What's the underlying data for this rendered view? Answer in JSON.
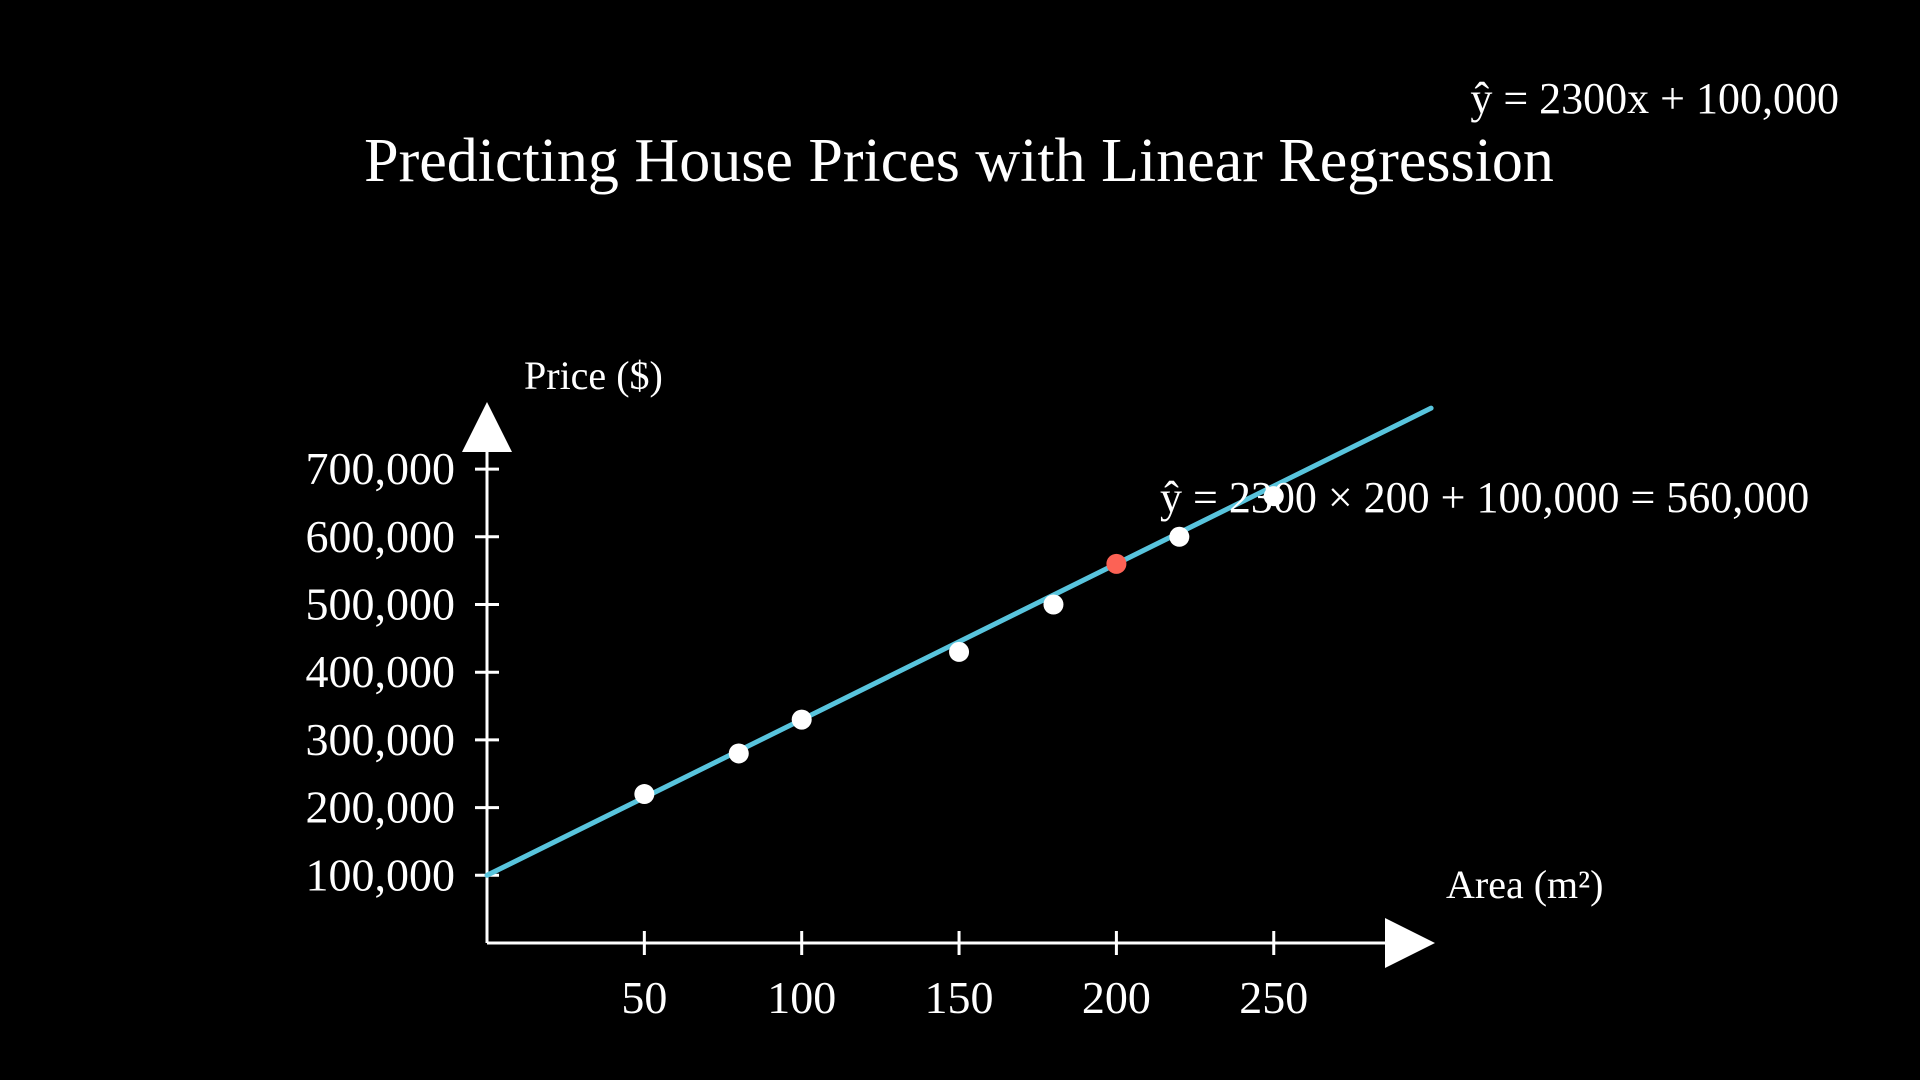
{
  "chart_data": {
    "type": "scatter",
    "title": "Predicting House Prices with Linear Regression",
    "equation": "ŷ = 2300x + 100,000",
    "xlabel": "Area (m²)",
    "ylabel": "Price ($)",
    "xlim": [
      0,
      300
    ],
    "ylim": [
      0,
      750000
    ],
    "x_ticks": [
      50,
      100,
      150,
      200,
      250
    ],
    "x_tick_labels": [
      "50",
      "100",
      "150",
      "200",
      "250"
    ],
    "y_ticks": [
      100000,
      200000,
      300000,
      400000,
      500000,
      600000,
      700000
    ],
    "y_tick_labels": [
      "100,000",
      "200,000",
      "300,000",
      "400,000",
      "500,000",
      "600,000",
      "700,000"
    ],
    "grid": false,
    "points": [
      {
        "x": 50,
        "y": 220000
      },
      {
        "x": 80,
        "y": 280000
      },
      {
        "x": 100,
        "y": 330000
      },
      {
        "x": 150,
        "y": 430000
      },
      {
        "x": 180,
        "y": 500000
      },
      {
        "x": 220,
        "y": 600000
      },
      {
        "x": 250,
        "y": 660000
      }
    ],
    "regression_line": {
      "slope": 2300,
      "intercept": 100000,
      "x_range": [
        0,
        300
      ]
    },
    "prediction": {
      "x": 200,
      "y": 560000,
      "label": "ŷ = 2300 × 200 + 100,000 = 560,000"
    },
    "colors": {
      "background": "#000000",
      "axes": "#ffffff",
      "points": "#ffffff",
      "line": "#58c4dd",
      "prediction": "#fc6255"
    }
  }
}
